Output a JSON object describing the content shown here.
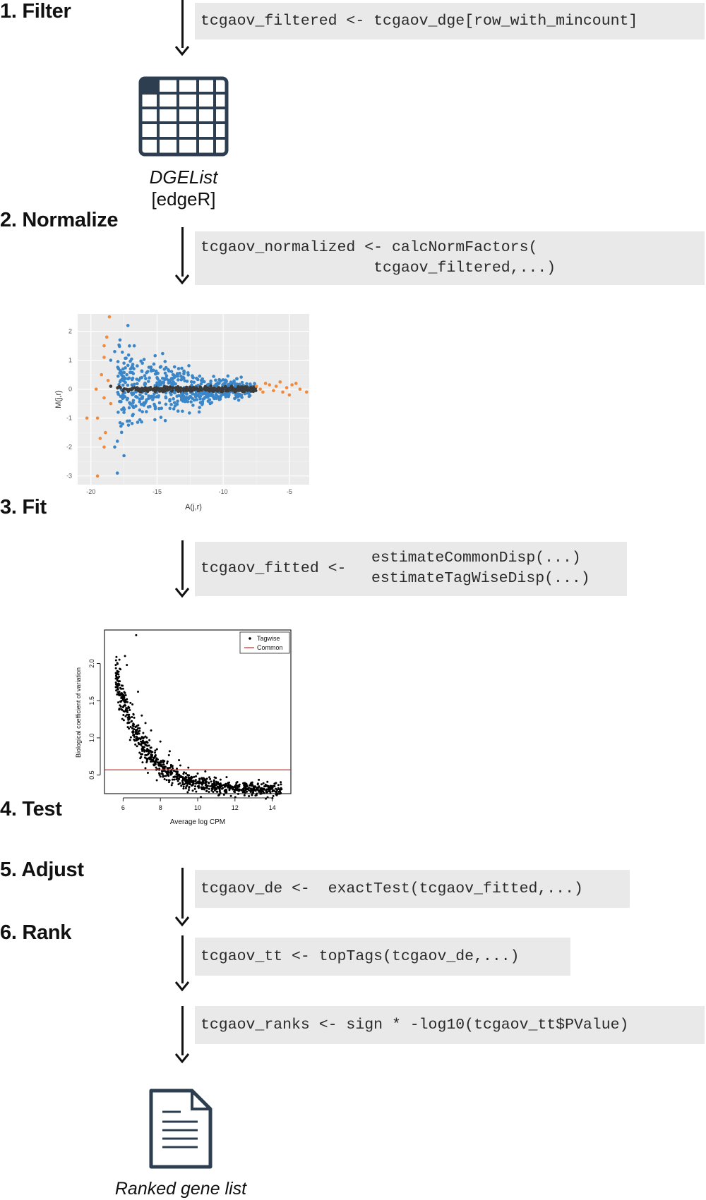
{
  "steps": [
    {
      "label": "1. Filter",
      "code": [
        "tcgaov_filtered <- tcgaov_dge[row_with_mincount]"
      ]
    },
    {
      "label": "2. Normalize",
      "code": [
        "tcgaov_normalized <- calcNormFactors(",
        "                   tcgaov_filtered,...)"
      ]
    },
    {
      "label": "3. Fit",
      "code_left": "tcgaov_fitted <-",
      "code_right": [
        "estimateCommonDisp(...)",
        "estimateTagWiseDisp(...)"
      ]
    },
    {
      "label": "4. Test",
      "code": [
        "tcgaov_de <-  exactTest(tcgaov_fitted,...)"
      ]
    },
    {
      "label": "5. Adjust",
      "code": [
        "tcgaov_tt <- topTags(tcgaov_de,...)"
      ]
    },
    {
      "label": "6. Rank",
      "code": [
        "tcgaov_ranks <- sign * -log10(tcgaov_tt$PValue)"
      ]
    }
  ],
  "dgelist": {
    "title": "DGEList",
    "subtitle": "[edgeR]",
    "icon": "table-icon"
  },
  "output": {
    "title": "Ranked gene list",
    "icon": "document-icon"
  },
  "colors": {
    "table_icon": "#2c3e50",
    "code_bg": "#e8e9e8",
    "ma_bg": "#ebebeb",
    "blue": "#3a86c8",
    "orange": "#f08a3c",
    "dark": "#3b3b3b",
    "red": "#e0201f"
  },
  "chart_data": [
    {
      "type": "scatter",
      "xlabel": "A(j,r)",
      "ylabel": "M(j,r)",
      "xlim": [
        -21,
        -3.5
      ],
      "ylim": [
        -3.3,
        2.6
      ],
      "x_ticks": [
        "-20",
        "-15",
        "-10",
        "-5"
      ],
      "y_ticks": [
        "2",
        "1",
        "0",
        "-1",
        "-2",
        "-3"
      ],
      "grid": true,
      "series": [
        {
          "color": "orange",
          "points": [
            [
              -20.3,
              -1
            ],
            [
              -19.5,
              -1
            ],
            [
              -19.6,
              0
            ],
            [
              -19.2,
              0.5
            ],
            [
              -19,
              1.1
            ],
            [
              -19,
              1.5
            ],
            [
              -18.8,
              1.8
            ],
            [
              -18.6,
              2.5
            ],
            [
              -19.3,
              -1.7
            ],
            [
              -19,
              -2
            ],
            [
              -18.9,
              -1.5
            ],
            [
              -19,
              -0.3
            ],
            [
              -19.5,
              -3
            ],
            [
              -18.7,
              0.3
            ],
            [
              -18.5,
              -0.5
            ],
            [
              -7.5,
              0.1
            ],
            [
              -7.2,
              0
            ],
            [
              -7,
              -0.1
            ],
            [
              -6.8,
              0.2
            ],
            [
              -6.5,
              0.15
            ],
            [
              -6.2,
              -0.05
            ],
            [
              -6,
              0.1
            ],
            [
              -5.7,
              0.25
            ],
            [
              -5.5,
              -0.1
            ],
            [
              -5.2,
              0.05
            ],
            [
              -5,
              -0.2
            ],
            [
              -4.8,
              0.15
            ],
            [
              -4.5,
              0.2
            ],
            [
              -4.2,
              0
            ],
            [
              -3.7,
              -0.1
            ]
          ]
        },
        {
          "color": "blue",
          "points": [
            [
              -18.5,
              1
            ],
            [
              -18.2,
              1.3
            ],
            [
              -17.8,
              1.7
            ],
            [
              -17.2,
              2.2
            ],
            [
              -18,
              -1.8
            ],
            [
              -18.2,
              -2
            ],
            [
              -18,
              -2.9
            ],
            [
              -17.6,
              -1.2
            ],
            [
              -17.5,
              -2.3
            ],
            [
              -17.5,
              0.9
            ],
            [
              -17,
              0.7
            ]
          ]
        },
        {
          "color": "dark",
          "points": [
            [
              -18.5,
              0.1
            ],
            [
              -17.5,
              0
            ],
            [
              -16.5,
              0.05
            ]
          ]
        }
      ]
    },
    {
      "type": "scatter",
      "xlabel": "Average log CPM",
      "ylabel": "Biological coefficient of variation",
      "xlim": [
        5,
        15
      ],
      "ylim": [
        0.25,
        2.45
      ],
      "x_ticks": [
        "6",
        "8",
        "10",
        "12",
        "14"
      ],
      "y_ticks": [
        "0.5",
        "1.0",
        "1.5",
        "2.0"
      ],
      "legend": [
        "Tagwise",
        "Common"
      ],
      "legend_position": "top-right",
      "common_dispersion": 0.57,
      "series": [
        {
          "name": "Tagwise",
          "points": [
            [
              6.7,
              2.38
            ],
            [
              5.8,
              2.05
            ],
            [
              6.1,
              2.1
            ],
            [
              6.2,
              1.98
            ],
            [
              5.7,
              1.72
            ],
            [
              5.9,
              1.6
            ],
            [
              6.2,
              1.52
            ],
            [
              6.5,
              1.45
            ],
            [
              6.8,
              1.62
            ],
            [
              7,
              1.3
            ],
            [
              7.2,
              1.2
            ],
            [
              7.5,
              1.1
            ],
            [
              8,
              0.95
            ],
            [
              8.5,
              0.82
            ],
            [
              9,
              0.7
            ],
            [
              9.5,
              0.6
            ],
            [
              10,
              0.52
            ],
            [
              10.5,
              0.45
            ],
            [
              11,
              0.41
            ],
            [
              11.5,
              0.38
            ],
            [
              12,
              0.35
            ],
            [
              12.5,
              0.33
            ],
            [
              13,
              0.32
            ],
            [
              13.5,
              0.31
            ],
            [
              14,
              0.32
            ],
            [
              14.5,
              0.31
            ]
          ]
        },
        {
          "name": "Common",
          "points": [
            [
              5,
              0.57
            ],
            [
              15,
              0.57
            ]
          ]
        }
      ]
    }
  ]
}
